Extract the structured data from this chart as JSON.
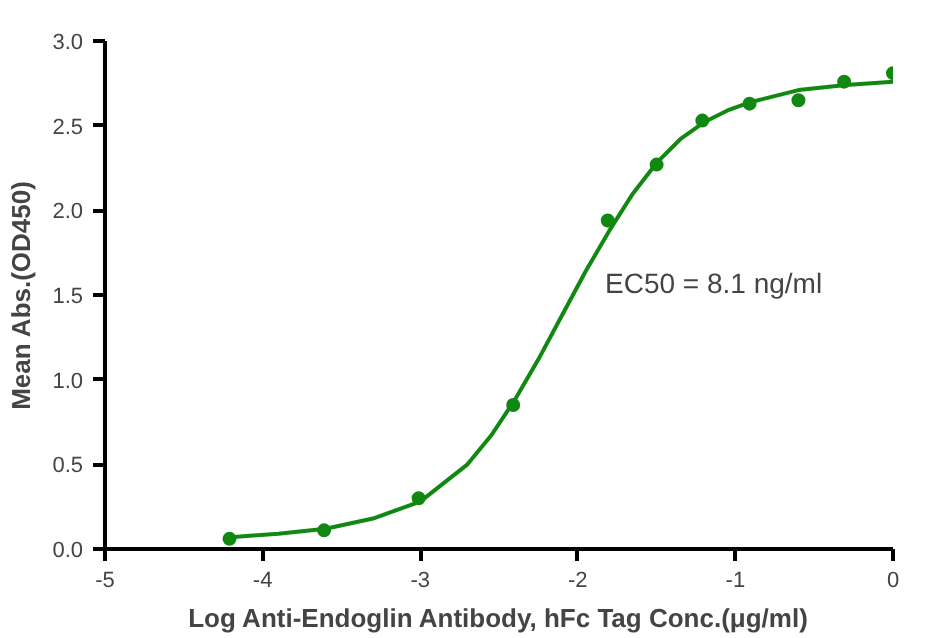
{
  "chart_data": {
    "type": "scatter",
    "xlabel": "Log Anti-Endoglin Antibody, hFc Tag Conc.(μg/ml)",
    "ylabel": "Mean Abs.(OD450)",
    "x": [
      -4.21,
      -3.61,
      -3.01,
      -2.41,
      -1.81,
      -1.5,
      -1.21,
      -0.91,
      -0.6,
      -0.31,
      0.0
    ],
    "series": [
      {
        "marker": "circle",
        "color": "#118811",
        "values": [
          0.06,
          0.11,
          0.3,
          0.85,
          1.94,
          2.27,
          2.53,
          2.63,
          2.65,
          2.76,
          2.81
        ]
      },
      {
        "type": "line",
        "marker": "none",
        "color": "#118811",
        "x": [
          -4.2,
          -3.9,
          -3.6,
          -3.3,
          -3.0,
          -2.7,
          -2.55,
          -2.4,
          -2.25,
          -2.1,
          -1.95,
          -1.8,
          -1.65,
          -1.5,
          -1.35,
          -1.2,
          -1.05,
          -0.9,
          -0.6,
          -0.3,
          0.0
        ],
        "values": [
          0.07,
          0.09,
          0.12,
          0.18,
          0.28,
          0.5,
          0.67,
          0.88,
          1.12,
          1.38,
          1.64,
          1.88,
          2.1,
          2.28,
          2.42,
          2.52,
          2.59,
          2.64,
          2.71,
          2.74,
          2.76
        ]
      }
    ],
    "grid": false,
    "xlim": [
      -5,
      0
    ],
    "xticks": [
      -5,
      -4,
      -3,
      -2,
      -1,
      0
    ],
    "ylim": [
      0,
      3.0
    ],
    "yticks": [
      {
        "value": 0,
        "label": "0.0"
      },
      {
        "value": 0.5,
        "label": "0.5"
      },
      {
        "value": 1,
        "label": "1.0"
      },
      {
        "value": 1.5,
        "label": "1.5"
      },
      {
        "value": 2,
        "label": "2.0"
      },
      {
        "value": 2.5,
        "label": "2.5"
      },
      {
        "value": 3,
        "label": "3.0"
      }
    ],
    "annotations": [
      "EC50 = 8.1 ng/ml"
    ]
  }
}
